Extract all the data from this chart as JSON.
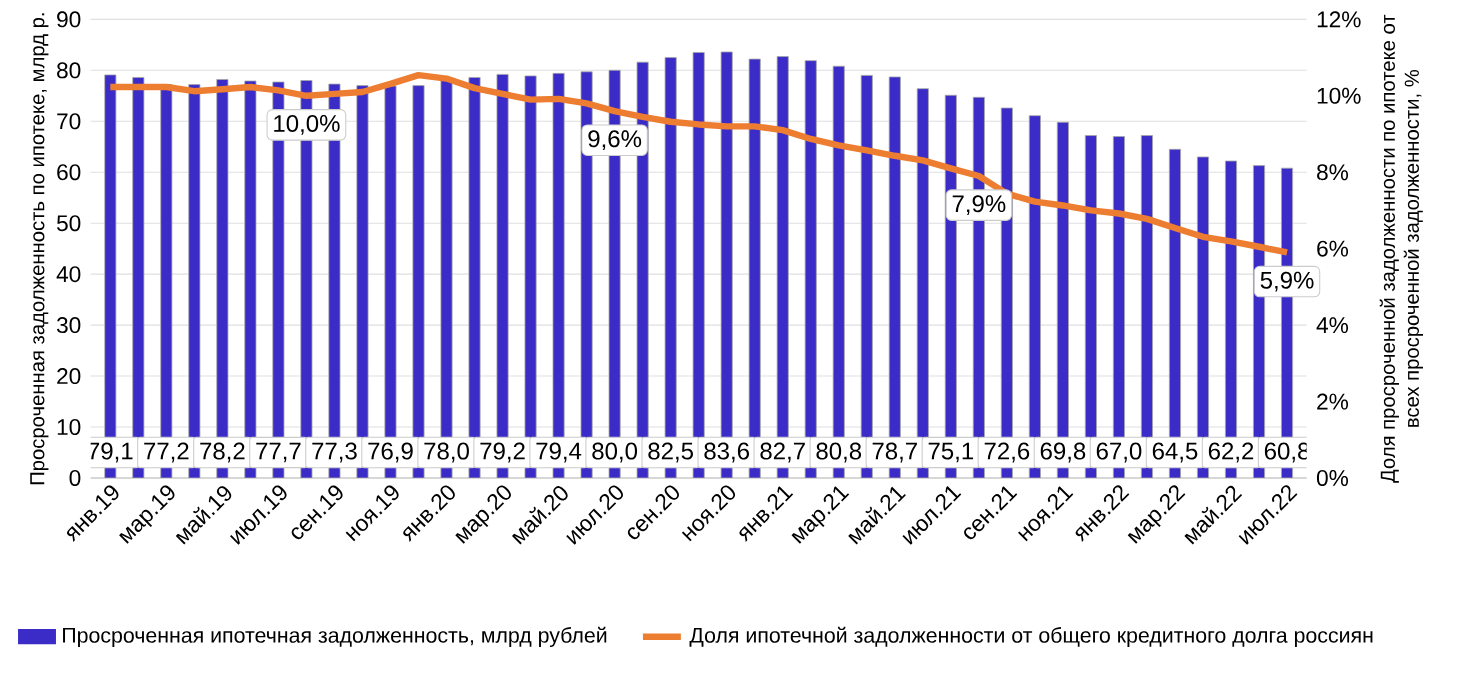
{
  "chart_data": {
    "type": "bar",
    "categories": [
      "янв.19",
      null,
      "мар.19",
      null,
      "май.19",
      null,
      "июл.19",
      null,
      "сен.19",
      null,
      "ноя.19",
      null,
      "янв.20",
      null,
      "мар.20",
      null,
      "май.20",
      null,
      "июл.20",
      null,
      "сен.20",
      null,
      "ноя.20",
      null,
      "янв.21",
      null,
      "мар.21",
      null,
      "май.21",
      null,
      "июл.21",
      null,
      "сен.21",
      null,
      "ноя.21",
      null,
      "янв.22",
      null,
      "мар.22",
      null,
      "май.22",
      null,
      "июл.22"
    ],
    "series": [
      {
        "name": "Просроченная ипотечная задолженность, млрд рублей",
        "type": "bar",
        "color": "#3b2cc8",
        "values": [
          79.1,
          78.6,
          77.2,
          77.2,
          78.2,
          77.9,
          77.7,
          78.0,
          77.3,
          77.0,
          76.9,
          77.0,
          78.0,
          78.6,
          79.2,
          78.9,
          79.4,
          79.7,
          80.0,
          81.6,
          82.5,
          83.5,
          83.6,
          82.2,
          82.7,
          81.9,
          80.8,
          79.0,
          78.7,
          76.4,
          75.1,
          74.7,
          72.6,
          71.1,
          69.8,
          67.2,
          67.0,
          67.2,
          64.5,
          63.0,
          62.2,
          61.3,
          60.8
        ],
        "value_labels": [
          "79,1",
          null,
          "77,2",
          null,
          "78,2",
          null,
          "77,7",
          null,
          "77,3",
          null,
          "76,9",
          null,
          "78,0",
          null,
          "79,2",
          null,
          "79,4",
          null,
          "80,0",
          null,
          "82,5",
          null,
          "83,6",
          null,
          "82,7",
          null,
          "80,8",
          null,
          "78,7",
          null,
          "75,1",
          null,
          "72,6",
          null,
          "69,8",
          null,
          "67,0",
          null,
          "64,5",
          null,
          "62,2",
          null,
          "60,8"
        ]
      },
      {
        "name": "Доля ипотечной задолженности от общего кредитного долга россиян",
        "type": "line",
        "axis": "y2",
        "color": "#ed7d31",
        "values": [
          10.23,
          10.23,
          10.23,
          10.12,
          10.17,
          10.23,
          10.14,
          10.0,
          10.05,
          10.1,
          10.31,
          10.54,
          10.45,
          10.2,
          10.05,
          9.9,
          9.92,
          9.8,
          9.6,
          9.45,
          9.32,
          9.25,
          9.2,
          9.2,
          9.1,
          8.87,
          8.7,
          8.57,
          8.43,
          8.31,
          8.1,
          7.9,
          7.44,
          7.23,
          7.13,
          7.0,
          6.92,
          6.78,
          6.54,
          6.31,
          6.19,
          6.05,
          5.9
        ],
        "value_labels": [
          null,
          null,
          null,
          null,
          null,
          null,
          null,
          "10,0%",
          null,
          null,
          null,
          null,
          null,
          null,
          null,
          null,
          null,
          null,
          "9,6%",
          null,
          null,
          null,
          null,
          null,
          null,
          null,
          null,
          null,
          null,
          null,
          null,
          "7,9%",
          null,
          null,
          null,
          null,
          null,
          null,
          null,
          null,
          null,
          null,
          "5,9%"
        ]
      }
    ],
    "ylabel": "Просроченная задолженность по ипотеке, млрд р.",
    "y2label": "Доля  просроченной задолженности по ипотеке от всех просроченной задолженности, %",
    "ylim": [
      0,
      90
    ],
    "yticks": [
      0,
      10,
      20,
      30,
      40,
      50,
      60,
      70,
      80,
      90
    ],
    "y2lim": [
      0,
      12
    ],
    "y2ticks": [
      {
        "value": 0,
        "label": "0%"
      },
      {
        "value": 2,
        "label": "2%"
      },
      {
        "value": 4,
        "label": "4%"
      },
      {
        "value": 6,
        "label": "6%"
      },
      {
        "value": 8,
        "label": "8%"
      },
      {
        "value": 10,
        "label": "10%"
      },
      {
        "value": 12,
        "label": "12%"
      }
    ],
    "grid": "y",
    "legend": "bottom"
  }
}
